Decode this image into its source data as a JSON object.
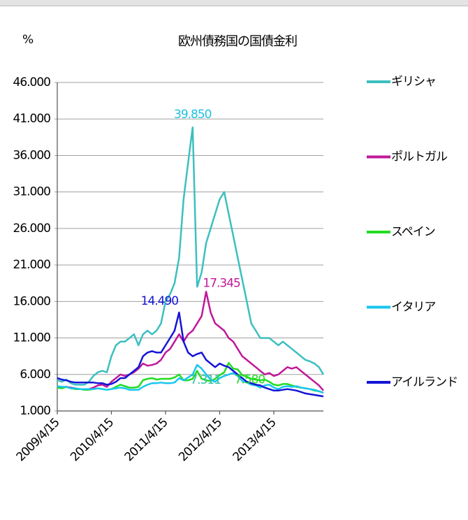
{
  "chart_data": {
    "type": "line",
    "title": "欧州債務国の国債金利",
    "ylabel": "%",
    "x": [
      "2009/4/15",
      "2009/5/15",
      "2009/6/15",
      "2009/7/15",
      "2009/8/15",
      "2009/9/15",
      "2009/10/15",
      "2009/11/15",
      "2009/12/15",
      "2010/1/15",
      "2010/2/15",
      "2010/3/15",
      "2010/4/15",
      "2010/5/15",
      "2010/6/15",
      "2010/7/15",
      "2010/8/15",
      "2010/9/15",
      "2010/10/15",
      "2010/11/15",
      "2010/12/15",
      "2011/1/15",
      "2011/2/15",
      "2011/3/15",
      "2011/4/15",
      "2011/5/15",
      "2011/6/15",
      "2011/7/15",
      "2011/8/15",
      "2011/9/15",
      "2011/10/15",
      "2011/11/15",
      "2011/12/15",
      "2012/1/15",
      "2012/2/15",
      "2012/3/15",
      "2012/4/15",
      "2012/5/15",
      "2012/6/15",
      "2012/7/15",
      "2012/8/15",
      "2012/9/15",
      "2012/10/15",
      "2012/11/15",
      "2012/12/15",
      "2013/1/15",
      "2013/2/15",
      "2013/3/15",
      "2013/4/15",
      "2013/5/15",
      "2013/6/15",
      "2013/7/15",
      "2013/8/15",
      "2013/9/15",
      "2013/10/15",
      "2013/11/15",
      "2013/12/15",
      "2014/1/15",
      "2014/2/15",
      "2014/3/15"
    ],
    "series": [
      {
        "name": "ギリシャ",
        "color": "#3cbfc0",
        "values": [
          5.2,
          5.0,
          5.3,
          4.8,
          4.6,
          4.6,
          4.6,
          5.0,
          5.8,
          6.3,
          6.5,
          6.3,
          8.5,
          10.0,
          10.5,
          10.5,
          11.0,
          11.5,
          10.0,
          11.5,
          12.0,
          11.5,
          12.0,
          13.0,
          16.0,
          17.0,
          18.5,
          22.0,
          30.0,
          35.0,
          39.85,
          18.0,
          20.0,
          24.0,
          26.0,
          28.0,
          30.0,
          31.0,
          28.0,
          25.0,
          22.0,
          19.0,
          16.0,
          13.0,
          12.0,
          11.0,
          11.0,
          11.0,
          10.5,
          10.0,
          10.5,
          10.0,
          9.5,
          9.0,
          8.5,
          8.0,
          7.8,
          7.5,
          7.0,
          6.0
        ]
      },
      {
        "name": "ポルトガル",
        "color": "#c0189a",
        "values": [
          4.3,
          4.2,
          4.3,
          4.2,
          4.1,
          4.0,
          4.0,
          4.0,
          4.2,
          4.5,
          4.6,
          4.3,
          5.0,
          5.5,
          6.0,
          5.8,
          6.0,
          6.3,
          6.8,
          7.5,
          7.2,
          7.3,
          7.5,
          8.0,
          9.0,
          9.5,
          10.5,
          11.5,
          10.5,
          11.5,
          12.0,
          13.0,
          14.0,
          17.345,
          14.5,
          13.0,
          12.5,
          12.0,
          11.0,
          10.5,
          9.5,
          8.5,
          8.0,
          7.5,
          7.0,
          6.5,
          6.0,
          6.2,
          5.8,
          6.0,
          6.5,
          7.0,
          6.8,
          7.0,
          6.5,
          6.0,
          5.5,
          5.0,
          4.5,
          3.8
        ]
      },
      {
        "name": "スペイン",
        "color": "#22dd22",
        "values": [
          4.2,
          4.1,
          4.3,
          4.1,
          4.0,
          4.0,
          3.9,
          3.9,
          4.0,
          4.1,
          4.0,
          3.9,
          4.0,
          4.3,
          4.6,
          4.4,
          4.2,
          4.2,
          4.3,
          5.2,
          5.4,
          5.5,
          5.3,
          5.4,
          5.4,
          5.4,
          5.6,
          6.0,
          5.2,
          5.2,
          5.4,
          6.5,
          5.4,
          5.2,
          5.1,
          5.4,
          5.9,
          6.3,
          7.58,
          6.8,
          6.7,
          5.9,
          5.7,
          5.4,
          5.3,
          5.2,
          5.3,
          5.0,
          4.6,
          4.5,
          4.7,
          4.7,
          4.5,
          4.3,
          4.2,
          4.1,
          4.0,
          3.8,
          3.7,
          3.5
        ]
      },
      {
        "name": "イタリア",
        "color": "#19c6f0",
        "values": [
          4.4,
          4.3,
          4.3,
          4.1,
          4.1,
          4.0,
          4.0,
          4.0,
          4.0,
          4.1,
          4.0,
          3.9,
          4.0,
          4.1,
          4.2,
          4.1,
          3.9,
          3.9,
          3.9,
          4.3,
          4.6,
          4.8,
          4.8,
          4.9,
          4.8,
          4.8,
          4.9,
          5.5,
          5.2,
          5.6,
          6.0,
          7.311,
          6.8,
          6.0,
          5.3,
          5.0,
          5.5,
          5.8,
          6.0,
          6.2,
          5.8,
          5.1,
          4.9,
          4.6,
          4.5,
          4.2,
          4.5,
          4.6,
          4.2,
          4.0,
          4.3,
          4.4,
          4.3,
          4.4,
          4.2,
          4.1,
          4.0,
          3.9,
          3.7,
          3.5
        ]
      },
      {
        "name": "アイルランド",
        "color": "#1414d8",
        "values": [
          5.5,
          5.3,
          5.2,
          5.0,
          4.9,
          4.9,
          4.9,
          4.9,
          4.9,
          4.8,
          4.8,
          4.6,
          4.7,
          5.0,
          5.5,
          5.5,
          6.0,
          6.5,
          7.0,
          8.5,
          9.0,
          9.2,
          9.0,
          9.0,
          10.0,
          11.0,
          12.0,
          14.49,
          10.5,
          9.0,
          8.5,
          8.8,
          9.0,
          8.0,
          7.5,
          7.0,
          7.5,
          7.2,
          7.0,
          6.5,
          6.0,
          5.5,
          5.0,
          4.8,
          4.6,
          4.5,
          4.2,
          4.0,
          3.8,
          3.8,
          3.9,
          4.0,
          3.9,
          3.8,
          3.6,
          3.4,
          3.3,
          3.2,
          3.1,
          3.0
        ]
      }
    ],
    "annotations": [
      {
        "text": "39.850",
        "x": "2011/10/15",
        "y": 39.85,
        "color": "#22c0e0"
      },
      {
        "text": "14.490",
        "x": "2011/7/15",
        "y": 14.49,
        "color": "#1414d8"
      },
      {
        "text": "17.345",
        "x": "2012/1/15",
        "y": 17.345,
        "color": "#c0189a"
      },
      {
        "text": "7.311",
        "x": "2011/11/15",
        "y": 7.311,
        "color": "#2bbf9f"
      },
      {
        "text": "7.580",
        "x": "2012/6/15",
        "y": 7.58,
        "color": "#22dd22"
      }
    ],
    "xlim": [
      "2009/4/15",
      "2014/3/15"
    ],
    "xticks": [
      "2009/4/15",
      "2010/4/15",
      "2011/4/15",
      "2012/4/15",
      "2013/4/15"
    ],
    "ylim": [
      1,
      46
    ],
    "yticks": [
      {
        "value": 1,
        "label": "1.000"
      },
      {
        "value": 6,
        "label": "6.000"
      },
      {
        "value": 11,
        "label": "11.000"
      },
      {
        "value": 16,
        "label": "16.000"
      },
      {
        "value": 21,
        "label": "21.000"
      },
      {
        "value": 26,
        "label": "26.000"
      },
      {
        "value": 31,
        "label": "31.000"
      },
      {
        "value": 36,
        "label": "36.000"
      },
      {
        "value": 41,
        "label": "41.000"
      },
      {
        "value": 46,
        "label": "46.000"
      }
    ],
    "grid": true,
    "legend": "right"
  }
}
